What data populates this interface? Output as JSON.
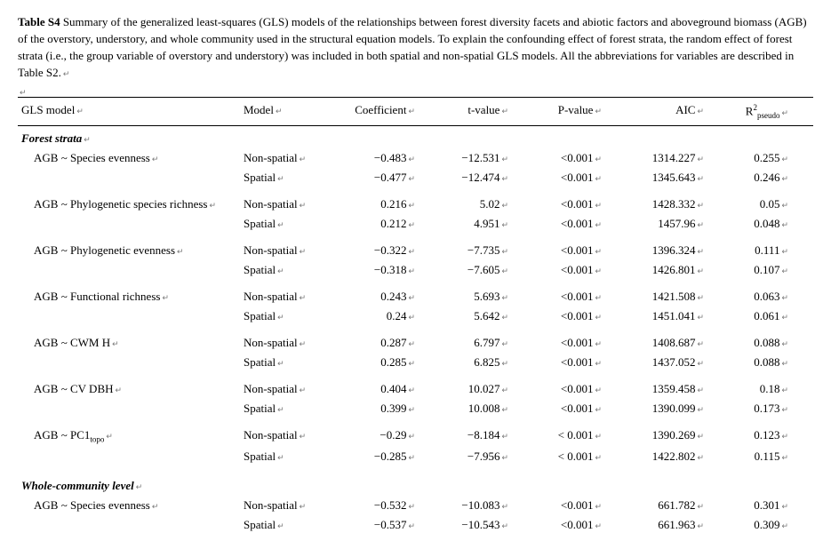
{
  "caption_bold": "Table S4",
  "caption_rest": " Summary of the generalized least-squares (GLS) models of the relationships between forest diversity facets and abiotic factors and aboveground biomass (AGB) of the overstory, understory, and whole community used in the structural equation models. To explain the confounding effect of forest strata, the random effect of forest strata (i.e., the group variable of overstory and understory) was included in both spatial and non-spatial GLS models. All the abbreviations for variables are described in Table S2.",
  "headers": {
    "gls": "GLS model",
    "model": "Model",
    "coef": "Coefficient",
    "t": "t-value",
    "p": "P-value",
    "aic": "AIC",
    "r2_prefix": "R",
    "r2_sup": "2",
    "r2_sub": "pseudo"
  },
  "sections": [
    {
      "title": "Forest strata",
      "rows": [
        {
          "label_html": "AGB ~ Species evenness",
          "pairs": [
            {
              "model": "Non-spatial",
              "coef": "−0.483",
              "t": "−12.531",
              "p": "<0.001",
              "aic": "1314.227",
              "r2": "0.255"
            },
            {
              "model": "Spatial",
              "coef": "−0.477",
              "t": "−12.474",
              "p": "<0.001",
              "aic": "1345.643",
              "r2": "0.246"
            }
          ]
        },
        {
          "label_html": "AGB ~ Phylogenetic species richness",
          "pairs": [
            {
              "model": "Non-spatial",
              "coef": "0.216",
              "t": "5.02",
              "p": "<0.001",
              "aic": "1428.332",
              "r2": "0.05"
            },
            {
              "model": "Spatial",
              "coef": "0.212",
              "t": "4.951",
              "p": "<0.001",
              "aic": "1457.96",
              "r2": "0.048"
            }
          ]
        },
        {
          "label_html": "AGB ~ Phylogenetic evenness",
          "pairs": [
            {
              "model": "Non-spatial",
              "coef": "−0.322",
              "t": "−7.735",
              "p": "<0.001",
              "aic": "1396.324",
              "r2": "0.111"
            },
            {
              "model": "Spatial",
              "coef": "−0.318",
              "t": "−7.605",
              "p": "<0.001",
              "aic": "1426.801",
              "r2": "0.107"
            }
          ]
        },
        {
          "label_html": "AGB ~ Functional richness",
          "pairs": [
            {
              "model": "Non-spatial",
              "coef": "0.243",
              "t": "5.693",
              "p": "<0.001",
              "aic": "1421.508",
              "r2": "0.063"
            },
            {
              "model": "Spatial",
              "coef": "0.24",
              "t": "5.642",
              "p": "<0.001",
              "aic": "1451.041",
              "r2": "0.061"
            }
          ]
        },
        {
          "label_html": "AGB ~ CWM H",
          "pairs": [
            {
              "model": "Non-spatial",
              "coef": "0.287",
              "t": "6.797",
              "p": "<0.001",
              "aic": "1408.687",
              "r2": "0.088"
            },
            {
              "model": "Spatial",
              "coef": "0.285",
              "t": "6.825",
              "p": "<0.001",
              "aic": "1437.052",
              "r2": "0.088"
            }
          ]
        },
        {
          "label_html": "AGB ~ CV DBH",
          "pairs": [
            {
              "model": "Non-spatial",
              "coef": "0.404",
              "t": "10.027",
              "p": "<0.001",
              "aic": "1359.458",
              "r2": "0.18"
            },
            {
              "model": "Spatial",
              "coef": "0.399",
              "t": "10.008",
              "p": "<0.001",
              "aic": "1390.099",
              "r2": "0.173"
            }
          ]
        },
        {
          "label_html": "AGB ~ PC1<span class='sub'>topo</span>",
          "pairs": [
            {
              "model": "Non-spatial",
              "coef": "−0.29",
              "t": "−8.184",
              "p": "< 0.001",
              "aic": "1390.269",
              "r2": "0.123"
            },
            {
              "model": "Spatial",
              "coef": "−0.285",
              "t": "−7.956",
              "p": "< 0.001",
              "aic": "1422.802",
              "r2": "0.115"
            }
          ]
        }
      ]
    },
    {
      "title": "Whole-community level",
      "rows": [
        {
          "label_html": "AGB ~ Species evenness",
          "pairs": [
            {
              "model": "Non-spatial",
              "coef": "−0.532",
              "t": "−10.083",
              "p": "<0.001",
              "aic": "661.782",
              "r2": "0.301"
            },
            {
              "model": "Spatial",
              "coef": "−0.537",
              "t": "−10.543",
              "p": "<0.001",
              "aic": "661.963",
              "r2": "0.309"
            }
          ]
        }
      ]
    }
  ]
}
